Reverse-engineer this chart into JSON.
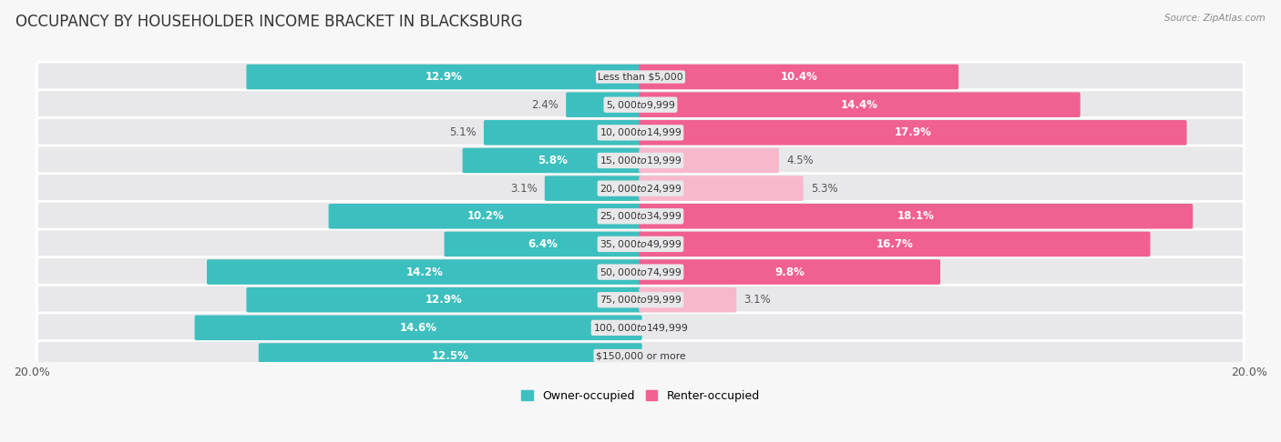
{
  "title": "OCCUPANCY BY HOUSEHOLDER INCOME BRACKET IN BLACKSBURG",
  "source": "Source: ZipAtlas.com",
  "categories": [
    "Less than $5,000",
    "$5,000 to $9,999",
    "$10,000 to $14,999",
    "$15,000 to $19,999",
    "$20,000 to $24,999",
    "$25,000 to $34,999",
    "$35,000 to $49,999",
    "$50,000 to $74,999",
    "$75,000 to $99,999",
    "$100,000 to $149,999",
    "$150,000 or more"
  ],
  "owner_values": [
    12.9,
    2.4,
    5.1,
    5.8,
    3.1,
    10.2,
    6.4,
    14.2,
    12.9,
    14.6,
    12.5
  ],
  "renter_values": [
    10.4,
    14.4,
    17.9,
    4.5,
    5.3,
    18.1,
    16.7,
    9.8,
    3.1,
    0.0,
    0.0
  ],
  "owner_color": "#3dbfbf",
  "renter_color_dark": "#f06090",
  "renter_color_light": "#f8b8cc",
  "max_value": 20.0,
  "row_bg_color": "#e8e8ea",
  "row_bg_edge": "#d8d8dc",
  "fig_bg": "#f7f7f7",
  "title_fontsize": 12,
  "label_fontsize": 8.5,
  "cat_fontsize": 7.8,
  "tick_fontsize": 9
}
